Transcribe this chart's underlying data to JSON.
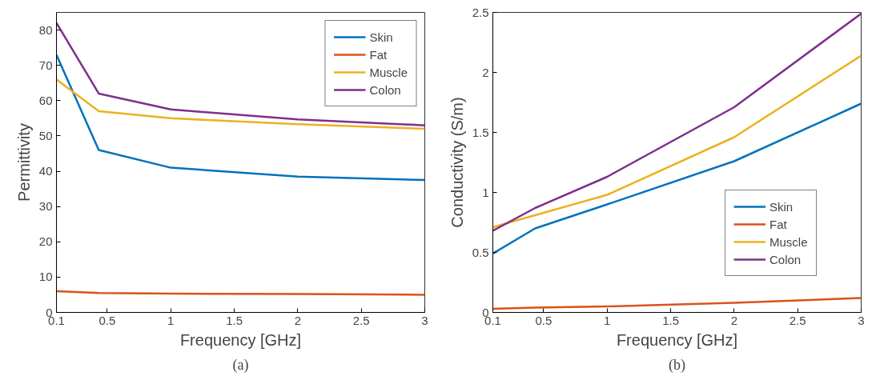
{
  "chart_data": [
    {
      "type": "line",
      "xlabel": "Frequency [GHz]",
      "ylabel": "Permittivity",
      "annotations": [
        "(a)"
      ],
      "x": [
        0.1,
        0.433,
        1,
        2,
        3
      ],
      "xlim": [
        0.1,
        3
      ],
      "ylim": [
        0,
        85
      ],
      "xticks": [
        0.1,
        0.5,
        1,
        1.5,
        2,
        2.5,
        3
      ],
      "yticks": [
        0,
        10,
        20,
        30,
        40,
        50,
        60,
        70,
        80
      ],
      "grid": false,
      "legend": "top right",
      "series": [
        {
          "name": "Skin",
          "color": "#0072bd",
          "values": [
            73,
            46,
            41,
            38.5,
            37.5
          ]
        },
        {
          "name": "Fat",
          "color": "#d95319",
          "values": [
            6,
            5.5,
            5.3,
            5.2,
            5
          ]
        },
        {
          "name": "Muscle",
          "color": "#edb120",
          "values": [
            66,
            57,
            55,
            53.3,
            52
          ]
        },
        {
          "name": "Colon",
          "color": "#7e2f8e",
          "values": [
            82,
            62,
            57.5,
            54.7,
            53
          ]
        }
      ]
    },
    {
      "type": "line",
      "xlabel": "Frequency [GHz]",
      "ylabel": "Conductivity (S/m)",
      "annotations": [
        "(b)"
      ],
      "x": [
        0.1,
        0.433,
        1,
        2,
        3
      ],
      "xlim": [
        0.1,
        3
      ],
      "ylim": [
        0,
        2.5
      ],
      "xticks": [
        0.1,
        0.5,
        1,
        1.5,
        2,
        2.5,
        3
      ],
      "yticks": [
        0,
        0.5,
        1,
        1.5,
        2,
        2.5
      ],
      "grid": false,
      "legend": "right",
      "series": [
        {
          "name": "Skin",
          "color": "#0072bd",
          "values": [
            0.49,
            0.7,
            0.9,
            1.26,
            1.74
          ]
        },
        {
          "name": "Fat",
          "color": "#d95319",
          "values": [
            0.03,
            0.04,
            0.05,
            0.08,
            0.12
          ]
        },
        {
          "name": "Muscle",
          "color": "#edb120",
          "values": [
            0.71,
            0.81,
            0.98,
            1.46,
            2.14
          ]
        },
        {
          "name": "Colon",
          "color": "#7e2f8e",
          "values": [
            0.68,
            0.87,
            1.13,
            1.71,
            2.49
          ]
        }
      ]
    }
  ]
}
